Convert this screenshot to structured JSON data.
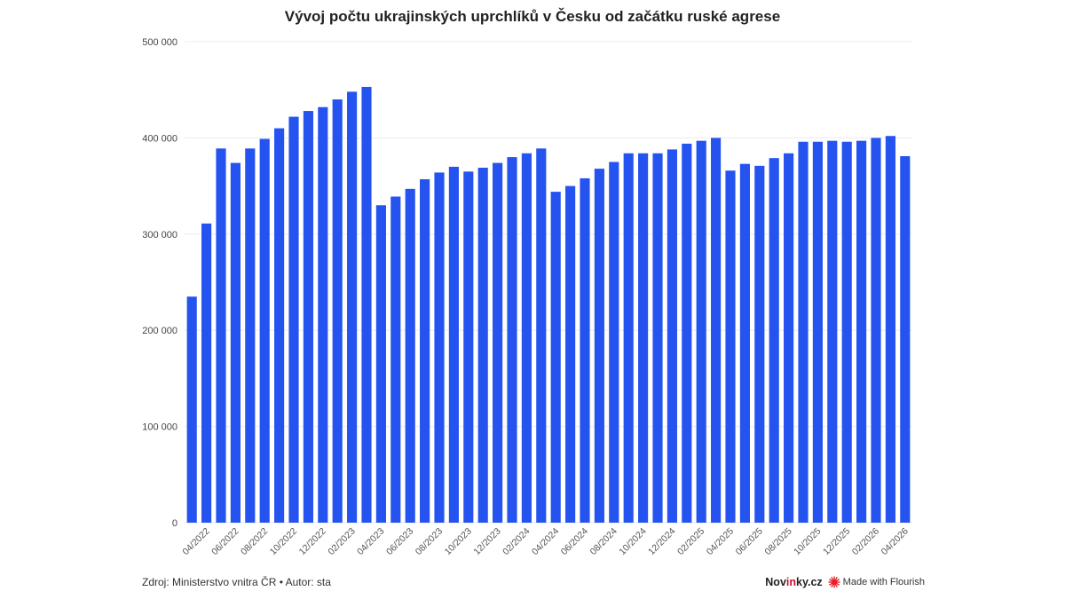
{
  "chart_data": {
    "type": "bar",
    "title": "Vývoj počtu ukrajinských uprchlíků v Česku od začátku ruské agrese",
    "xlabel": "",
    "ylabel": "",
    "ylim": [
      0,
      500000
    ],
    "yticks": [
      0,
      100000,
      200000,
      300000,
      400000,
      500000
    ],
    "ytick_labels": [
      "0",
      "100 000",
      "200 000",
      "300 000",
      "400 000",
      "500 000"
    ],
    "grid": true,
    "bar_color": "#2553f0",
    "categories": [
      "03/2022",
      "04/2022",
      "05/2022",
      "06/2022",
      "07/2022",
      "08/2022",
      "09/2022",
      "10/2022",
      "11/2022",
      "12/2022",
      "01/2023",
      "02/2023",
      "03/2023",
      "04/2023",
      "05/2023",
      "06/2023",
      "07/2023",
      "08/2023",
      "09/2023",
      "10/2023",
      "11/2023",
      "12/2023",
      "01/2024",
      "02/2024",
      "03/2024",
      "04/2024",
      "05/2024",
      "06/2024",
      "07/2024",
      "08/2024",
      "09/2024",
      "10/2024",
      "11/2024",
      "12/2024",
      "01/2025",
      "02/2025",
      "03/2025",
      "04/2025",
      "05/2025",
      "06/2025",
      "07/2025",
      "08/2025",
      "09/2025",
      "10/2025",
      "11/2025",
      "12/2025",
      "01/2026",
      "02/2026",
      "03/2026",
      "04/2026"
    ],
    "values": [
      235000,
      311000,
      389000,
      374000,
      389000,
      399000,
      410000,
      422000,
      428000,
      432000,
      440000,
      448000,
      453000,
      330000,
      339000,
      347000,
      357000,
      364000,
      370000,
      365000,
      369000,
      374000,
      380000,
      384000,
      389000,
      344000,
      350000,
      358000,
      368000,
      375000,
      384000,
      384000,
      384000,
      388000,
      394000,
      397000,
      400000,
      366000,
      373000,
      371000,
      379000,
      384000,
      396000,
      396000,
      397000,
      396000,
      397000,
      400000,
      402000,
      381000
    ],
    "shown_tick_labels": [
      "04/2022",
      "06/2022",
      "08/2022",
      "10/2022",
      "12/2022",
      "02/2023",
      "04/2023",
      "06/2023",
      "08/2023",
      "10/2023",
      "12/2023",
      "02/2024",
      "04/2024",
      "06/2024",
      "08/2024",
      "10/2024",
      "12/2024",
      "02/2025",
      "04/2025",
      "06/2025",
      "08/2025",
      "10/2025",
      "12/2025",
      "02/2026",
      "04/2026"
    ]
  },
  "footer": {
    "source": "Zdroj: Ministerstvo vnitra ČR • Autor: sta",
    "brand_pre": "Nov",
    "brand_in": "in",
    "brand_post": "ky.cz",
    "flourish": "Made with Flourish",
    "flourish_icon": "flourish-star-icon",
    "flourish_color": "#e8202a"
  }
}
